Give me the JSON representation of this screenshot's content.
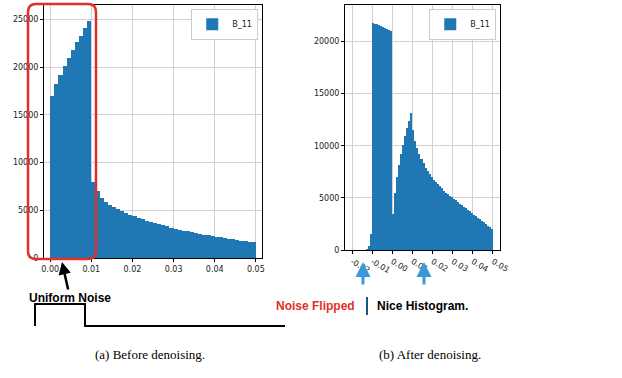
{
  "chart_data": [
    {
      "type": "histogram",
      "caption": "(a) Before denoising.",
      "annotations": [
        "Uniform Noise"
      ],
      "bins": [
        0,
        0.001,
        0.002,
        0.003,
        0.004,
        0.005,
        0.006,
        0.007,
        0.008,
        0.009,
        0.01,
        0.011,
        0.012,
        0.013,
        0.014,
        0.015,
        0.016,
        0.017,
        0.018,
        0.019,
        0.02,
        0.021,
        0.022,
        0.023,
        0.024,
        0.025,
        0.026,
        0.027,
        0.028,
        0.029,
        0.03,
        0.031,
        0.032,
        0.033,
        0.034,
        0.035,
        0.036,
        0.037,
        0.038,
        0.039,
        0.04,
        0.041,
        0.042,
        0.043,
        0.044,
        0.045,
        0.046,
        0.047,
        0.048,
        0.049,
        0.05
      ],
      "series": [
        {
          "name": "B_11",
          "color": "#1f77b4",
          "values": [
            17000,
            18200,
            19200,
            20100,
            21000,
            21800,
            22600,
            23300,
            24100,
            24800,
            8000,
            7000,
            6300,
            5900,
            5600,
            5350,
            5100,
            4900,
            4700,
            4500,
            4350,
            4200,
            4050,
            3900,
            3780,
            3660,
            3540,
            3420,
            3300,
            3190,
            3080,
            2980,
            2880,
            2790,
            2700,
            2610,
            2530,
            2450,
            2370,
            2290,
            2220,
            2150,
            2080,
            2010,
            1950,
            1880,
            1820,
            1760,
            1700,
            1640
          ]
        }
      ],
      "xlim": [
        -0.0015,
        0.0515
      ],
      "xticks": [
        {
          "value": 0,
          "label": "0.00"
        },
        {
          "value": 0.01,
          "label": "0.01"
        },
        {
          "value": 0.02,
          "label": "0.02"
        },
        {
          "value": 0.03,
          "label": "0.03"
        },
        {
          "value": 0.04,
          "label": "0.04"
        },
        {
          "value": 0.05,
          "label": "0.05"
        }
      ],
      "ylim": [
        0,
        26500
      ],
      "yticks": [
        0,
        5000,
        10000,
        15000,
        20000,
        25000
      ],
      "grid": true,
      "legend": "upper right"
    },
    {
      "type": "histogram",
      "caption": "(b) After denoising.",
      "annotations": [
        "Noise Flipped",
        "Nice Histogram."
      ],
      "bins": [
        -0.02,
        -0.019,
        -0.018,
        -0.017,
        -0.016,
        -0.015,
        -0.014,
        -0.013,
        -0.012,
        -0.011,
        -0.01,
        -0.009,
        -0.008,
        -0.007,
        -0.006,
        -0.005,
        -0.004,
        -0.003,
        -0.002,
        -0.001,
        0,
        0.001,
        0.002,
        0.003,
        0.004,
        0.005,
        0.006,
        0.007,
        0.008,
        0.009,
        0.01,
        0.011,
        0.012,
        0.013,
        0.014,
        0.015,
        0.016,
        0.017,
        0.018,
        0.019,
        0.02,
        0.021,
        0.022,
        0.023,
        0.024,
        0.025,
        0.026,
        0.027,
        0.028,
        0.029,
        0.03,
        0.031,
        0.032,
        0.033,
        0.034,
        0.035,
        0.036,
        0.037,
        0.038,
        0.039,
        0.04,
        0.041,
        0.042,
        0.043,
        0.044,
        0.045,
        0.046,
        0.047,
        0.048,
        0.049,
        0.05
      ],
      "series": [
        {
          "name": "B_11",
          "color": "#1f77b4",
          "values": [
            0,
            0,
            0,
            0,
            0,
            0,
            0,
            100,
            400,
            1500,
            21800,
            21700,
            21700,
            21600,
            21500,
            21400,
            21300,
            21200,
            21100,
            21000,
            3500,
            5500,
            7000,
            8200,
            9200,
            10100,
            10900,
            11700,
            12400,
            13100,
            11500,
            10500,
            9800,
            9200,
            8700,
            8300,
            7900,
            7600,
            7300,
            7000,
            6750,
            6500,
            6300,
            6100,
            5900,
            5700,
            5500,
            5350,
            5200,
            5050,
            4900,
            4750,
            4600,
            4450,
            4300,
            4150,
            4000,
            3850,
            3700,
            3550,
            3400,
            3250,
            3100,
            2950,
            2800,
            2650,
            2500,
            2350,
            2200,
            2050
          ]
        }
      ],
      "xlim": [
        -0.0235,
        0.0535
      ],
      "xticks": [
        {
          "value": -0.02,
          "label": "-0.02"
        },
        {
          "value": -0.01,
          "label": "-0.01"
        },
        {
          "value": 0,
          "label": "0.00"
        },
        {
          "value": 0.01,
          "label": "0.01"
        },
        {
          "value": 0.02,
          "label": "0.02"
        },
        {
          "value": 0.03,
          "label": "0.03"
        },
        {
          "value": 0.04,
          "label": "0.04"
        },
        {
          "value": 0.05,
          "label": "0.05"
        }
      ],
      "ylim": [
        0,
        23500
      ],
      "yticks": [
        0,
        5000,
        10000,
        15000,
        20000
      ],
      "grid": true,
      "legend": "upper right"
    }
  ]
}
